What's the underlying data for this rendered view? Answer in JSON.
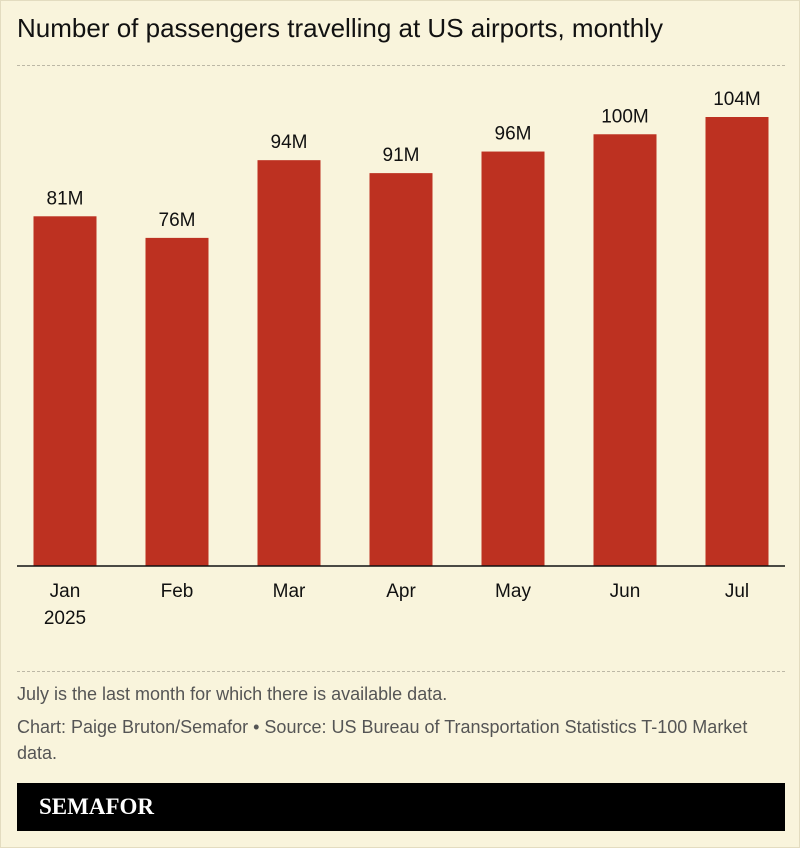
{
  "chart_data": {
    "type": "bar",
    "title": "Number of passengers travelling at US airports, monthly",
    "categories": [
      "Jan 2025",
      "Feb",
      "Mar",
      "Apr",
      "May",
      "Jun",
      "Jul"
    ],
    "values": [
      81,
      76,
      94,
      91,
      96,
      100,
      104
    ],
    "value_labels": [
      "81M",
      "76M",
      "94M",
      "91M",
      "96M",
      "100M",
      "104M"
    ],
    "color": "#bd3121",
    "note": "July is the last month for which there is available data.",
    "credit": "Chart: Paige Bruton/Semafor • Source: US Bureau of Transportation Statistics T-100 Market data.",
    "brand": "SEMAFOR"
  }
}
